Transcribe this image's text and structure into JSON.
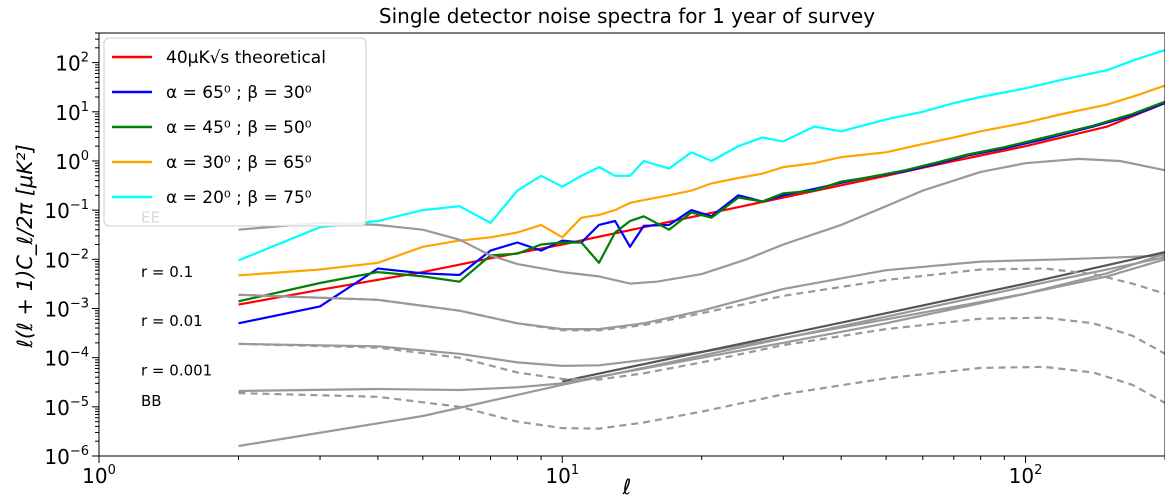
{
  "chart_data": {
    "type": "line",
    "title": "Single detector noise spectra for 1 year of survey",
    "xlabel": "ℓ",
    "ylabel": "ℓ(ℓ + 1)C_ℓ/2π [μK²]",
    "x_scale": "log",
    "y_scale": "log",
    "xlim": [
      1,
      200
    ],
    "ylim": [
      1e-06,
      400
    ],
    "x_ticks": [
      {
        "value": 1,
        "base": "10",
        "exp": "0"
      },
      {
        "value": 10,
        "base": "10",
        "exp": "1"
      },
      {
        "value": 100,
        "base": "10",
        "exp": "2"
      }
    ],
    "y_ticks": [
      {
        "value": 1e-06,
        "base": "10",
        "exp": "−6"
      },
      {
        "value": 1e-05,
        "base": "10",
        "exp": "−5"
      },
      {
        "value": 0.0001,
        "base": "10",
        "exp": "−4"
      },
      {
        "value": 0.001,
        "base": "10",
        "exp": "−3"
      },
      {
        "value": 0.01,
        "base": "10",
        "exp": "−2"
      },
      {
        "value": 0.1,
        "base": "10",
        "exp": "−1"
      },
      {
        "value": 1,
        "base": "10",
        "exp": "0"
      },
      {
        "value": 10,
        "base": "10",
        "exp": "1"
      },
      {
        "value": 100,
        "base": "10",
        "exp": "2"
      }
    ],
    "legend_position": "top-left",
    "series": [
      {
        "name": "40μK√s theoretical",
        "color": "#ff0000",
        "legend": true,
        "points": [
          [
            2,
            0.0012
          ],
          [
            3,
            0.0024
          ],
          [
            5,
            0.0055
          ],
          [
            7,
            0.0105
          ],
          [
            10,
            0.02
          ],
          [
            15,
            0.045
          ],
          [
            20,
            0.08
          ],
          [
            30,
            0.18
          ],
          [
            50,
            0.5
          ],
          [
            70,
            1.0
          ],
          [
            100,
            2.0
          ],
          [
            150,
            5.0
          ],
          [
            200,
            15.0
          ]
        ]
      },
      {
        "name": "α = 65⁰ ; β = 30⁰",
        "color": "#0000ff",
        "legend": true,
        "points": [
          [
            2,
            0.0005
          ],
          [
            3,
            0.0011
          ],
          [
            4,
            0.0065
          ],
          [
            5,
            0.0052
          ],
          [
            6,
            0.0048
          ],
          [
            7,
            0.015
          ],
          [
            8,
            0.022
          ],
          [
            9,
            0.015
          ],
          [
            10,
            0.024
          ],
          [
            11,
            0.022
          ],
          [
            12,
            0.05
          ],
          [
            13,
            0.06
          ],
          [
            14,
            0.018
          ],
          [
            15,
            0.048
          ],
          [
            17,
            0.05
          ],
          [
            19,
            0.1
          ],
          [
            21,
            0.075
          ],
          [
            24,
            0.2
          ],
          [
            27,
            0.15
          ],
          [
            30,
            0.2
          ],
          [
            35,
            0.27
          ],
          [
            40,
            0.36
          ],
          [
            45,
            0.45
          ],
          [
            55,
            0.62
          ],
          [
            65,
            0.9
          ],
          [
            75,
            1.3
          ],
          [
            90,
            1.8
          ],
          [
            110,
            2.8
          ],
          [
            140,
            5.0
          ],
          [
            170,
            8.5
          ],
          [
            200,
            15.0
          ]
        ]
      },
      {
        "name": "α = 45⁰ ; β = 50⁰",
        "color": "#008000",
        "legend": true,
        "points": [
          [
            2,
            0.0014
          ],
          [
            3,
            0.0033
          ],
          [
            4,
            0.0055
          ],
          [
            5,
            0.0045
          ],
          [
            6,
            0.0035
          ],
          [
            7,
            0.012
          ],
          [
            8,
            0.013
          ],
          [
            9,
            0.02
          ],
          [
            10,
            0.022
          ],
          [
            11,
            0.022
          ],
          [
            12,
            0.0085
          ],
          [
            13,
            0.035
          ],
          [
            14,
            0.06
          ],
          [
            15,
            0.075
          ],
          [
            17,
            0.04
          ],
          [
            19,
            0.09
          ],
          [
            21,
            0.07
          ],
          [
            24,
            0.18
          ],
          [
            27,
            0.15
          ],
          [
            30,
            0.22
          ],
          [
            35,
            0.25
          ],
          [
            40,
            0.38
          ],
          [
            45,
            0.45
          ],
          [
            55,
            0.65
          ],
          [
            65,
            0.95
          ],
          [
            75,
            1.35
          ],
          [
            90,
            1.9
          ],
          [
            110,
            3.0
          ],
          [
            140,
            5.2
          ],
          [
            170,
            9.0
          ],
          [
            200,
            16.0
          ]
        ]
      },
      {
        "name": "α = 30⁰ ; β = 65⁰",
        "color": "#ffa500",
        "legend": true,
        "points": [
          [
            2,
            0.0047
          ],
          [
            3,
            0.0062
          ],
          [
            4,
            0.0085
          ],
          [
            5,
            0.018
          ],
          [
            6,
            0.024
          ],
          [
            7,
            0.028
          ],
          [
            8,
            0.035
          ],
          [
            9,
            0.05
          ],
          [
            10,
            0.028
          ],
          [
            11,
            0.07
          ],
          [
            12,
            0.08
          ],
          [
            13,
            0.1
          ],
          [
            14,
            0.14
          ],
          [
            15,
            0.16
          ],
          [
            17,
            0.2
          ],
          [
            19,
            0.25
          ],
          [
            21,
            0.35
          ],
          [
            24,
            0.45
          ],
          [
            27,
            0.55
          ],
          [
            30,
            0.75
          ],
          [
            35,
            0.9
          ],
          [
            40,
            1.2
          ],
          [
            50,
            1.5
          ],
          [
            60,
            2.2
          ],
          [
            70,
            3.0
          ],
          [
            80,
            4.0
          ],
          [
            100,
            6.0
          ],
          [
            120,
            9.0
          ],
          [
            150,
            14.0
          ],
          [
            175,
            22.0
          ],
          [
            200,
            34.0
          ]
        ]
      },
      {
        "name": "α = 20⁰ ; β = 75⁰",
        "color": "#00ffff",
        "legend": true,
        "points": [
          [
            2,
            0.0095
          ],
          [
            3,
            0.045
          ],
          [
            4,
            0.06
          ],
          [
            5,
            0.1
          ],
          [
            6,
            0.12
          ],
          [
            7,
            0.055
          ],
          [
            8,
            0.25
          ],
          [
            9,
            0.5
          ],
          [
            10,
            0.3
          ],
          [
            11,
            0.5
          ],
          [
            12,
            0.75
          ],
          [
            13,
            0.5
          ],
          [
            14,
            0.5
          ],
          [
            15,
            1.0
          ],
          [
            17,
            0.7
          ],
          [
            19,
            1.5
          ],
          [
            21,
            1.0
          ],
          [
            24,
            2.0
          ],
          [
            27,
            3.0
          ],
          [
            30,
            2.5
          ],
          [
            35,
            5.0
          ],
          [
            40,
            4.0
          ],
          [
            50,
            7.0
          ],
          [
            60,
            10.0
          ],
          [
            70,
            15.0
          ],
          [
            80,
            20.0
          ],
          [
            100,
            30.0
          ],
          [
            120,
            45.0
          ],
          [
            150,
            70.0
          ],
          [
            175,
            120.0
          ],
          [
            200,
            180.0
          ]
        ]
      },
      {
        "name": "",
        "color": "#999999",
        "legend": false,
        "points": [
          [
            2,
            0.04
          ],
          [
            3,
            0.055
          ],
          [
            4,
            0.05
          ],
          [
            5,
            0.04
          ],
          [
            6,
            0.025
          ],
          [
            7,
            0.012
          ],
          [
            8,
            0.008
          ],
          [
            10,
            0.0055
          ],
          [
            12,
            0.0045
          ],
          [
            14,
            0.0032
          ],
          [
            16,
            0.0035
          ],
          [
            20,
            0.005
          ],
          [
            25,
            0.01
          ],
          [
            30,
            0.02
          ],
          [
            40,
            0.05
          ],
          [
            50,
            0.12
          ],
          [
            60,
            0.25
          ],
          [
            80,
            0.6
          ],
          [
            100,
            0.9
          ],
          [
            130,
            1.1
          ],
          [
            160,
            1.0
          ],
          [
            200,
            0.65
          ]
        ]
      },
      {
        "name": "",
        "color": "#999999",
        "legend": false,
        "points": [
          [
            2,
            0.0019
          ],
          [
            4,
            0.0015
          ],
          [
            6,
            0.0009
          ],
          [
            8,
            0.0005
          ],
          [
            10,
            0.00038
          ],
          [
            12,
            0.00038
          ],
          [
            15,
            0.0005
          ],
          [
            20,
            0.0009
          ],
          [
            30,
            0.0025
          ],
          [
            50,
            0.006
          ],
          [
            80,
            0.009
          ],
          [
            120,
            0.01
          ],
          [
            160,
            0.011
          ],
          [
            200,
            0.012
          ]
        ]
      },
      {
        "name": "",
        "color": "#999999",
        "legend": false,
        "points": [
          [
            2,
            0.00019
          ],
          [
            4,
            0.00017
          ],
          [
            6,
            0.00012
          ],
          [
            8,
            8e-05
          ],
          [
            10,
            6.8e-05
          ],
          [
            12,
            7e-05
          ],
          [
            15,
            9e-05
          ],
          [
            20,
            0.00013
          ],
          [
            30,
            0.00025
          ],
          [
            50,
            0.0006
          ],
          [
            100,
            0.002
          ],
          [
            150,
            0.0045
          ],
          [
            200,
            0.01
          ]
        ]
      },
      {
        "name": "",
        "color": "#999999",
        "legend": false,
        "points": [
          [
            2,
            2.1e-05
          ],
          [
            4,
            2.3e-05
          ],
          [
            6,
            2.2e-05
          ],
          [
            8,
            2.5e-05
          ],
          [
            10,
            3e-05
          ],
          [
            15,
            6e-05
          ],
          [
            20,
            0.0001
          ],
          [
            30,
            0.0002
          ],
          [
            50,
            0.0005
          ],
          [
            100,
            0.002
          ],
          [
            150,
            0.0052
          ],
          [
            200,
            0.013
          ]
        ]
      },
      {
        "name": "",
        "color": "#999999",
        "legend": false,
        "points": [
          [
            2,
            1.6e-06
          ],
          [
            5,
            6.5e-06
          ],
          [
            10,
            2.8e-05
          ],
          [
            20,
            0.00011
          ],
          [
            50,
            0.00068
          ],
          [
            100,
            0.0028
          ],
          [
            200,
            0.011
          ]
        ]
      },
      {
        "name": "",
        "color": "#555555",
        "legend": false,
        "points": [
          [
            10,
            3.3e-05
          ],
          [
            20,
            0.00013
          ],
          [
            50,
            0.0008
          ],
          [
            100,
            0.0032
          ],
          [
            200,
            0.014
          ]
        ]
      },
      {
        "name": "",
        "color": "#999999",
        "legend": false,
        "dashed": true,
        "points": [
          [
            2,
            0.0019
          ],
          [
            4,
            0.0015
          ],
          [
            6,
            0.0009
          ],
          [
            8,
            0.0005
          ],
          [
            10,
            0.00036
          ],
          [
            12,
            0.00036
          ],
          [
            15,
            0.00046
          ],
          [
            20,
            0.0008
          ],
          [
            30,
            0.0018
          ],
          [
            50,
            0.0038
          ],
          [
            80,
            0.0062
          ],
          [
            110,
            0.0065
          ],
          [
            140,
            0.005
          ],
          [
            170,
            0.0032
          ],
          [
            200,
            0.002
          ]
        ]
      },
      {
        "name": "",
        "color": "#999999",
        "legend": false,
        "dashed": true,
        "points": [
          [
            2,
            0.00019
          ],
          [
            4,
            0.00016
          ],
          [
            6,
            0.0001
          ],
          [
            8,
            5e-05
          ],
          [
            10,
            3.7e-05
          ],
          [
            12,
            3.6e-05
          ],
          [
            15,
            4.8e-05
          ],
          [
            20,
            8e-05
          ],
          [
            30,
            0.00018
          ],
          [
            50,
            0.00038
          ],
          [
            80,
            0.00062
          ],
          [
            110,
            0.00065
          ],
          [
            140,
            0.0005
          ],
          [
            170,
            0.00028
          ],
          [
            200,
            0.00012
          ]
        ]
      },
      {
        "name": "",
        "color": "#999999",
        "legend": false,
        "dashed": true,
        "points": [
          [
            2,
            1.9e-05
          ],
          [
            4,
            1.6e-05
          ],
          [
            6,
            1e-05
          ],
          [
            8,
            5e-06
          ],
          [
            10,
            3.7e-06
          ],
          [
            12,
            3.6e-06
          ],
          [
            15,
            4.8e-06
          ],
          [
            20,
            8e-06
          ],
          [
            30,
            1.8e-05
          ],
          [
            50,
            3.8e-05
          ],
          [
            80,
            6.2e-05
          ],
          [
            110,
            6.5e-05
          ],
          [
            140,
            5e-05
          ],
          [
            170,
            2.8e-05
          ],
          [
            200,
            1.2e-05
          ]
        ]
      }
    ],
    "annotations": [
      {
        "text": "EE",
        "x": 1.5,
        "y": 0.07
      },
      {
        "text": "r = 0.1",
        "x": 1.5,
        "y": 0.0055
      },
      {
        "text": "r = 0.01",
        "x": 1.5,
        "y": 0.00055
      },
      {
        "text": "r = 0.001",
        "x": 1.5,
        "y": 5.5e-05
      },
      {
        "text": "BB",
        "x": 1.5,
        "y": 1.3e-05
      }
    ]
  }
}
